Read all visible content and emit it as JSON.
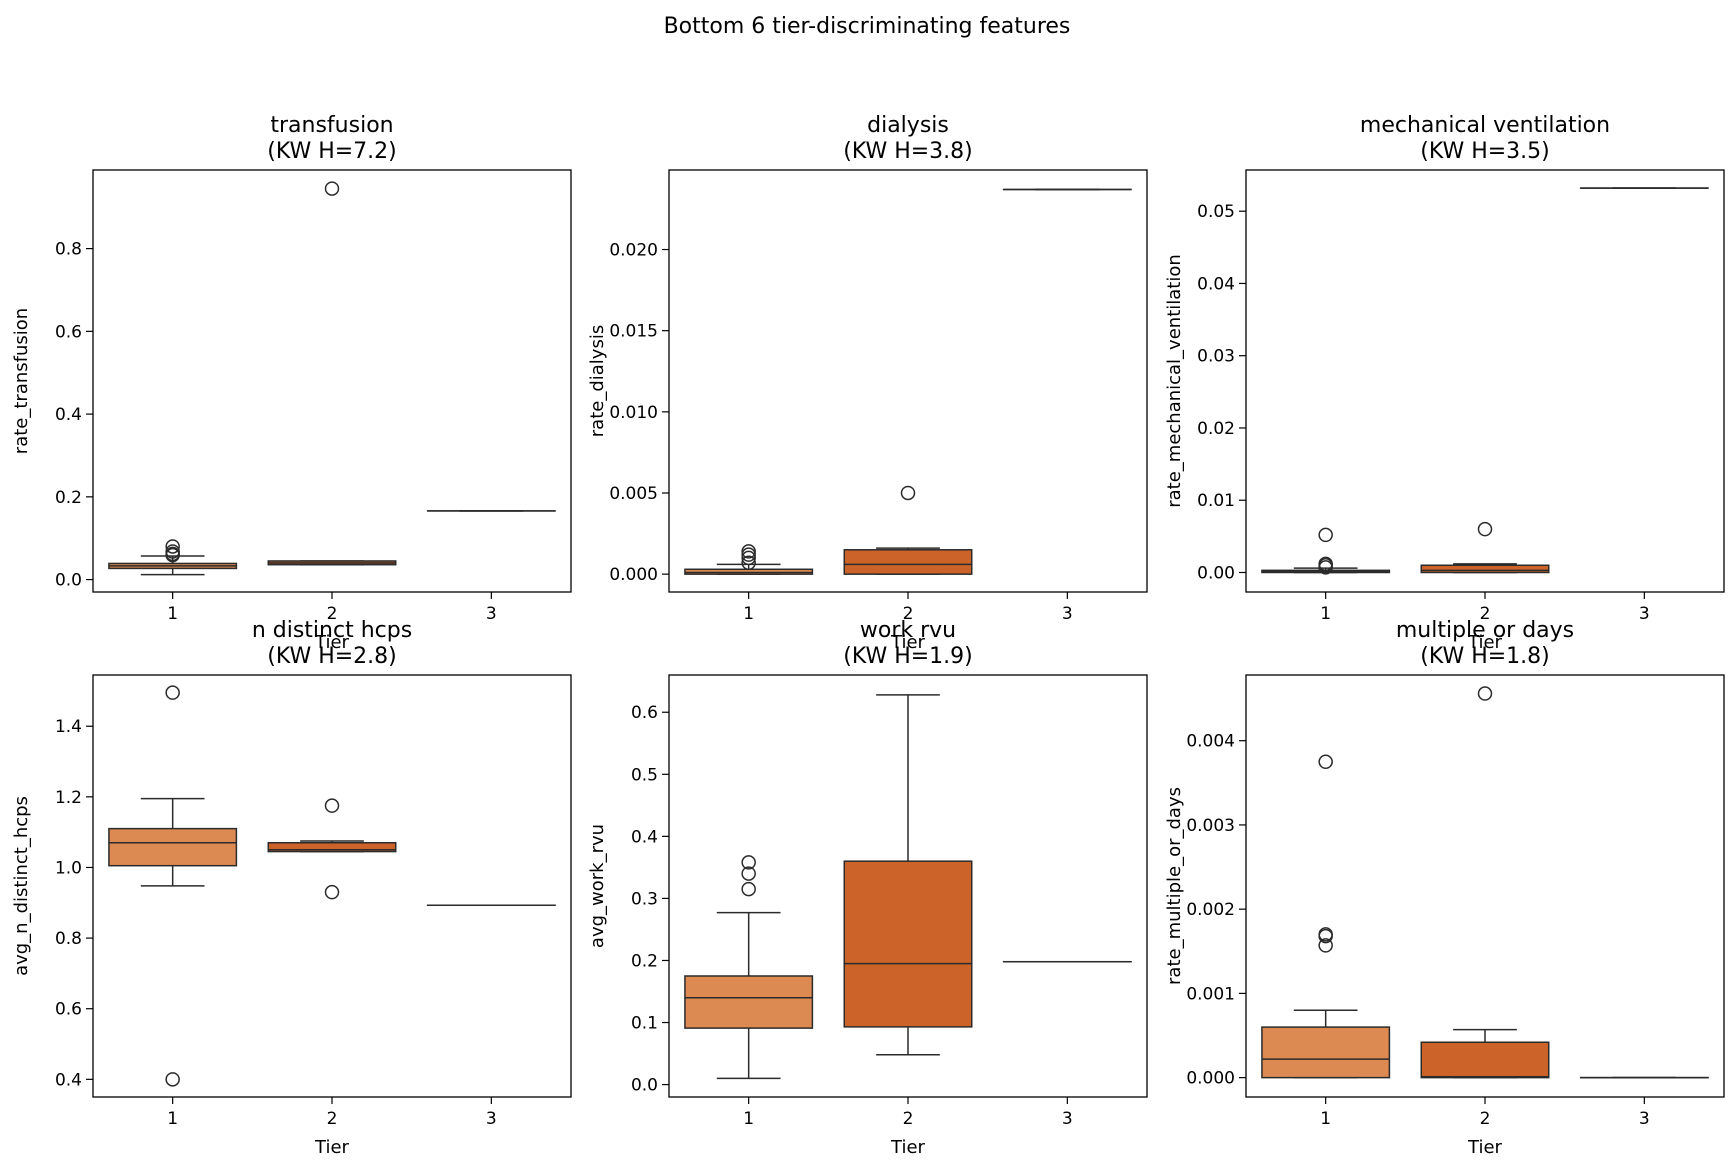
{
  "suptitle": "Bottom 6 tier-discriminating features",
  "colors": {
    "tier_1": "#DD8A52",
    "tier_2": "#CC6429",
    "tier_3": "#B0461A",
    "line": "#2b2b2b"
  },
  "chart_data": [
    {
      "type": "box",
      "title_line1": "transfusion",
      "title_line2": "(KW H=7.2)",
      "xlabel": "Tier",
      "ylabel": "rate_transfusion",
      "categories": [
        "1",
        "2",
        "3"
      ],
      "ylim": [
        -0.03,
        0.99
      ],
      "yticks": [
        0.0,
        0.2,
        0.4,
        0.6,
        0.8
      ],
      "ytick_labels": [
        "0.0",
        "0.2",
        "0.4",
        "0.6",
        "0.8"
      ],
      "boxes": [
        {
          "tier": "1",
          "q1": 0.027,
          "median": 0.033,
          "q3": 0.039,
          "whisker_low": 0.012,
          "whisker_high": 0.057,
          "outliers": [
            0.059,
            0.062,
            0.068,
            0.08
          ]
        },
        {
          "tier": "2",
          "q1": 0.036,
          "median": 0.04,
          "q3": 0.045,
          "whisker_low": 0.036,
          "whisker_high": 0.045,
          "outliers": [
            0.945
          ]
        },
        {
          "tier": "3",
          "q1": 0.166,
          "median": 0.166,
          "q3": 0.166,
          "whisker_low": 0.166,
          "whisker_high": 0.166,
          "outliers": []
        }
      ]
    },
    {
      "type": "box",
      "title_line1": "dialysis",
      "title_line2": "(KW H=3.8)",
      "xlabel": "Tier",
      "ylabel": "rate_dialysis",
      "categories": [
        "1",
        "2",
        "3"
      ],
      "ylim": [
        -0.0011,
        0.0249
      ],
      "yticks": [
        0.0,
        0.005,
        0.01,
        0.015,
        0.02
      ],
      "ytick_labels": [
        "0.000",
        "0.005",
        "0.010",
        "0.015",
        "0.020"
      ],
      "boxes": [
        {
          "tier": "1",
          "q1": 0.0,
          "median": 0.0001,
          "q3": 0.0003,
          "whisker_low": 0.0,
          "whisker_high": 0.0006,
          "outliers": [
            0.0007,
            0.001,
            0.0012,
            0.0014
          ]
        },
        {
          "tier": "2",
          "q1": 0.0,
          "median": 0.0006,
          "q3": 0.0015,
          "whisker_low": 0.0,
          "whisker_high": 0.0016,
          "outliers": [
            0.005
          ]
        },
        {
          "tier": "3",
          "q1": 0.0237,
          "median": 0.0237,
          "q3": 0.0237,
          "whisker_low": 0.0237,
          "whisker_high": 0.0237,
          "outliers": []
        }
      ]
    },
    {
      "type": "box",
      "title_line1": "mechanical ventilation",
      "title_line2": "(KW H=3.5)",
      "xlabel": "Tier",
      "ylabel": "rate_mechanical_ventilation",
      "categories": [
        "1",
        "2",
        "3"
      ],
      "ylim": [
        -0.0027,
        0.0557
      ],
      "yticks": [
        0.0,
        0.01,
        0.02,
        0.03,
        0.04,
        0.05
      ],
      "ytick_labels": [
        "0.00",
        "0.01",
        "0.02",
        "0.03",
        "0.04",
        "0.05"
      ],
      "boxes": [
        {
          "tier": "1",
          "q1": 0.0,
          "median": 0.0001,
          "q3": 0.0003,
          "whisker_low": 0.0,
          "whisker_high": 0.0006,
          "outliers": [
            0.0007,
            0.001,
            0.0012,
            0.0052
          ]
        },
        {
          "tier": "2",
          "q1": 0.0,
          "median": 0.0003,
          "q3": 0.001,
          "whisker_low": 0.0,
          "whisker_high": 0.0012,
          "outliers": [
            0.006
          ]
        },
        {
          "tier": "3",
          "q1": 0.0532,
          "median": 0.0532,
          "q3": 0.0532,
          "whisker_low": 0.0532,
          "whisker_high": 0.0532,
          "outliers": []
        }
      ]
    },
    {
      "type": "box",
      "title_line1": "n distinct hcps",
      "title_line2": "(KW H=2.8)",
      "xlabel": "Tier",
      "ylabel": "avg_n_distinct_hcps",
      "categories": [
        "1",
        "2",
        "3"
      ],
      "ylim": [
        0.35,
        1.545
      ],
      "yticks": [
        0.4,
        0.6,
        0.8,
        1.0,
        1.2,
        1.4
      ],
      "ytick_labels": [
        "0.4",
        "0.6",
        "0.8",
        "1.0",
        "1.2",
        "1.4"
      ],
      "boxes": [
        {
          "tier": "1",
          "q1": 1.005,
          "median": 1.07,
          "q3": 1.11,
          "whisker_low": 0.948,
          "whisker_high": 1.195,
          "outliers": [
            1.495,
            0.4
          ]
        },
        {
          "tier": "2",
          "q1": 1.045,
          "median": 1.05,
          "q3": 1.07,
          "whisker_low": 1.045,
          "whisker_high": 1.075,
          "outliers": [
            1.175,
            0.93
          ]
        },
        {
          "tier": "3",
          "q1": 0.893,
          "median": 0.893,
          "q3": 0.893,
          "whisker_low": 0.893,
          "whisker_high": 0.893,
          "outliers": []
        }
      ]
    },
    {
      "type": "box",
      "title_line1": "work rvu",
      "title_line2": "(KW H=1.9)",
      "xlabel": "Tier",
      "ylabel": "avg_work_rvu",
      "categories": [
        "1",
        "2",
        "3"
      ],
      "ylim": [
        -0.02,
        0.66
      ],
      "yticks": [
        0.0,
        0.1,
        0.2,
        0.3,
        0.4,
        0.5,
        0.6
      ],
      "ytick_labels": [
        "0.0",
        "0.1",
        "0.2",
        "0.3",
        "0.4",
        "0.5",
        "0.6"
      ],
      "boxes": [
        {
          "tier": "1",
          "q1": 0.091,
          "median": 0.14,
          "q3": 0.175,
          "whisker_low": 0.01,
          "whisker_high": 0.277,
          "outliers": [
            0.315,
            0.34,
            0.358
          ]
        },
        {
          "tier": "2",
          "q1": 0.093,
          "median": 0.195,
          "q3": 0.36,
          "whisker_low": 0.048,
          "whisker_high": 0.628,
          "outliers": []
        },
        {
          "tier": "3",
          "q1": 0.198,
          "median": 0.198,
          "q3": 0.198,
          "whisker_low": 0.198,
          "whisker_high": 0.198,
          "outliers": []
        }
      ]
    },
    {
      "type": "box",
      "title_line1": "multiple or days",
      "title_line2": "(KW H=1.8)",
      "xlabel": "Tier",
      "ylabel": "rate_multiple_or_days",
      "categories": [
        "1",
        "2",
        "3"
      ],
      "ylim": [
        -0.00023,
        0.00478
      ],
      "yticks": [
        0.0,
        0.001,
        0.002,
        0.003,
        0.004
      ],
      "ytick_labels": [
        "0.000",
        "0.001",
        "0.002",
        "0.003",
        "0.004"
      ],
      "boxes": [
        {
          "tier": "1",
          "q1": 0.0,
          "median": 0.00022,
          "q3": 0.0006,
          "whisker_low": 0.0,
          "whisker_high": 0.0008,
          "outliers": [
            0.00375,
            0.0017,
            0.00168,
            0.00157
          ]
        },
        {
          "tier": "2",
          "q1": 0.0,
          "median": 1e-05,
          "q3": 0.00042,
          "whisker_low": 0.0,
          "whisker_high": 0.00057,
          "outliers": [
            0.00456
          ]
        },
        {
          "tier": "3",
          "q1": 0.0,
          "median": 0.0,
          "q3": 0.0,
          "whisker_low": 0.0,
          "whisker_high": 0.0,
          "outliers": []
        }
      ]
    }
  ]
}
